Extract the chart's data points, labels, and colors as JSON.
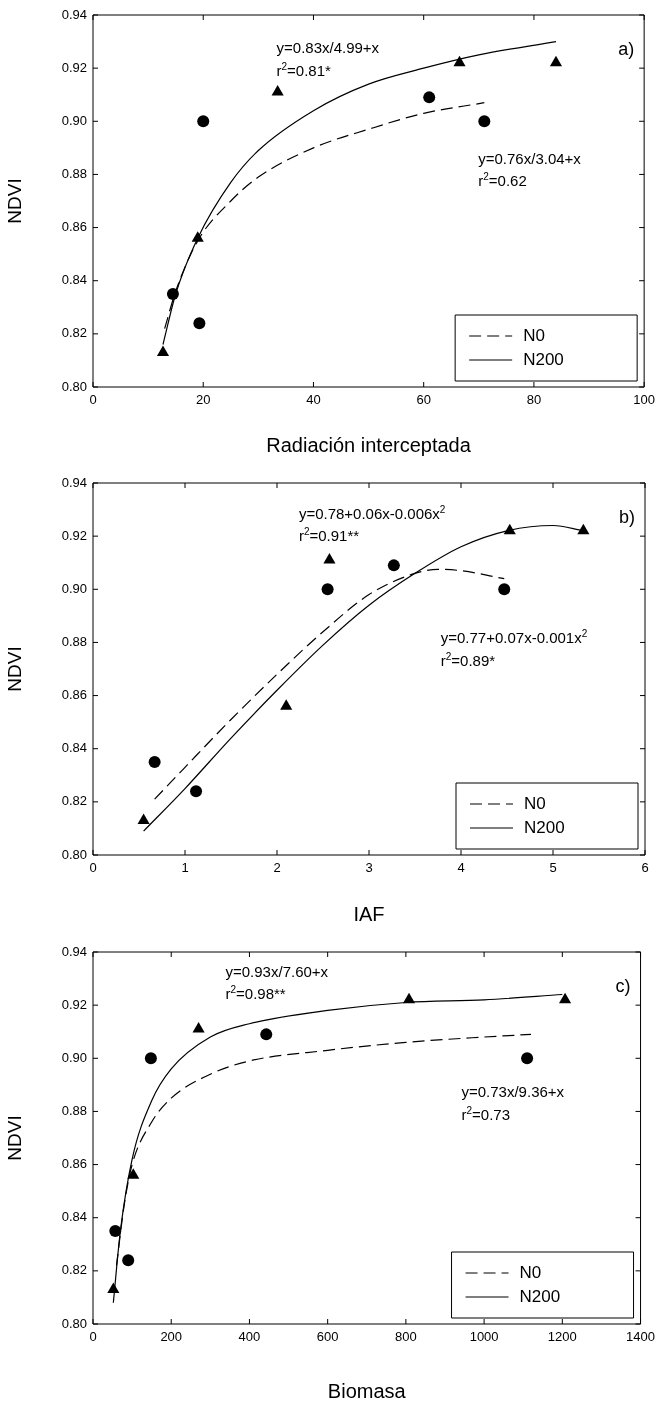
{
  "chart_data": [
    {
      "type": "scatter",
      "xlabel": "Radiación interceptada",
      "ylabel": "NDVI",
      "xlim": [
        0,
        100
      ],
      "xticks": [
        0,
        20,
        40,
        60,
        80,
        100
      ],
      "ylim": [
        0.8,
        0.94
      ],
      "yticks": [
        {
          "value": 0.8,
          "label": "0.80"
        },
        {
          "value": 0.82,
          "label": "0.82"
        },
        {
          "value": 0.84,
          "label": "0.84"
        },
        {
          "value": 0.86,
          "label": "0.86"
        },
        {
          "value": 0.88,
          "label": "0.88"
        },
        {
          "value": 0.9,
          "label": "0.90"
        },
        {
          "value": 0.92,
          "label": "0.92"
        },
        {
          "value": 0.94,
          "label": "0.94"
        }
      ],
      "grid": false,
      "legend": "bottom right",
      "series": [
        {
          "name": "N0",
          "type": "line",
          "color": "#000000",
          "line_style": "dashed",
          "marker": "none",
          "x": [
            13,
            15,
            19,
            25,
            30,
            40,
            50,
            60,
            71
          ],
          "values": [
            0.822,
            0.836,
            0.855,
            0.87,
            0.879,
            0.89,
            0.897,
            0.903,
            0.907
          ]
        },
        {
          "name": "N200",
          "type": "line",
          "color": "#000000",
          "line_style": "solid",
          "marker": "none",
          "x": [
            12.7,
            15,
            19,
            25,
            30,
            40,
            50,
            60,
            70,
            84
          ],
          "values": [
            0.816,
            0.835,
            0.856,
            0.877,
            0.889,
            0.904,
            0.914,
            0.92,
            0.925,
            0.93
          ]
        },
        {
          "type": "scatter",
          "color": "#000000",
          "marker": "circle",
          "x": [
            14.5,
            19.3,
            20,
            61,
            71
          ],
          "values": [
            0.835,
            0.824,
            0.9,
            0.909,
            0.9
          ]
        },
        {
          "type": "scatter",
          "color": "#000000",
          "marker": "triangle",
          "x": [
            12.7,
            19,
            33.5,
            66.5,
            84
          ],
          "values": [
            0.813,
            0.856,
            0.911,
            0.922,
            0.922
          ]
        }
      ],
      "annotations": [
        "a)",
        "y=0.83x/4.99+x",
        "r$^{2}$=0.81*",
        "y=0.76x/3.04+x",
        "r$^{2}$=0.62"
      ]
    },
    {
      "type": "scatter",
      "xlabel": "IAF",
      "ylabel": "NDVI",
      "xlim": [
        0,
        6
      ],
      "xticks": [
        0,
        1,
        2,
        3,
        4,
        5,
        6
      ],
      "ylim": [
        0.8,
        0.94
      ],
      "yticks": [
        {
          "value": 0.8,
          "label": "0.80"
        },
        {
          "value": 0.82,
          "label": "0.82"
        },
        {
          "value": 0.84,
          "label": "0.84"
        },
        {
          "value": 0.86,
          "label": "0.86"
        },
        {
          "value": 0.88,
          "label": "0.88"
        },
        {
          "value": 0.9,
          "label": "0.90"
        },
        {
          "value": 0.92,
          "label": "0.92"
        },
        {
          "value": 0.94,
          "label": "0.94"
        }
      ],
      "grid": false,
      "legend": "bottom right",
      "series": [
        {
          "name": "N0",
          "type": "line",
          "color": "#000000",
          "line_style": "dashed",
          "marker": "none",
          "x": [
            0.67,
            1,
            1.5,
            2,
            2.5,
            3,
            3.5,
            3.75,
            4,
            4.47
          ],
          "values": [
            0.821,
            0.833,
            0.851,
            0.868,
            0.884,
            0.898,
            0.906,
            0.9075,
            0.907,
            0.904
          ]
        },
        {
          "name": "N200",
          "type": "line",
          "color": "#000000",
          "line_style": "solid",
          "marker": "none",
          "x": [
            0.55,
            1,
            1.5,
            2,
            2.5,
            3,
            3.5,
            4,
            4.5,
            5,
            5.33
          ],
          "values": [
            0.809,
            0.825,
            0.844,
            0.862,
            0.879,
            0.894,
            0.906,
            0.916,
            0.922,
            0.924,
            0.922
          ]
        },
        {
          "type": "scatter",
          "color": "#000000",
          "marker": "circle",
          "x": [
            0.67,
            1.12,
            2.55,
            3.27,
            4.47
          ],
          "values": [
            0.835,
            0.824,
            0.9,
            0.909,
            0.9
          ]
        },
        {
          "type": "scatter",
          "color": "#000000",
          "marker": "triangle",
          "x": [
            0.55,
            2.1,
            2.57,
            4.53,
            5.33
          ],
          "values": [
            0.813,
            0.856,
            0.911,
            0.922,
            0.922
          ]
        }
      ],
      "annotations": [
        "b)",
        "y=0.78+0.06x-0.006x$^{2}$",
        "r$^{2}$=0.91**",
        "y=0.77+0.07x-0.001x$^{2}$",
        "r$^{2}$=0.89*"
      ]
    },
    {
      "type": "scatter",
      "xlabel": "Biomasa",
      "ylabel": "NDVI",
      "xlim": [
        0,
        1400
      ],
      "xticks": [
        0,
        200,
        400,
        600,
        800,
        1000,
        1200,
        1400
      ],
      "ylim": [
        0.8,
        0.94
      ],
      "yticks": [
        {
          "value": 0.8,
          "label": "0.80"
        },
        {
          "value": 0.82,
          "label": "0.82"
        },
        {
          "value": 0.84,
          "label": "0.84"
        },
        {
          "value": 0.86,
          "label": "0.86"
        },
        {
          "value": 0.88,
          "label": "0.88"
        },
        {
          "value": 0.9,
          "label": "0.90"
        },
        {
          "value": 0.92,
          "label": "0.92"
        },
        {
          "value": 0.94,
          "label": "0.94"
        }
      ],
      "grid": false,
      "legend": "bottom right",
      "series": [
        {
          "name": "N0",
          "type": "line",
          "color": "#000000",
          "line_style": "dashed",
          "marker": "none",
          "x": [
            60,
            80,
            100,
            150,
            200,
            300,
            400,
            600,
            800,
            1000,
            1120
          ],
          "values": [
            0.822,
            0.845,
            0.86,
            0.876,
            0.885,
            0.894,
            0.899,
            0.903,
            0.906,
            0.908,
            0.909
          ]
        },
        {
          "name": "N200",
          "type": "line",
          "color": "#000000",
          "line_style": "solid",
          "marker": "none",
          "x": [
            52,
            70,
            100,
            150,
            200,
            300,
            400,
            600,
            800,
            1000,
            1200
          ],
          "values": [
            0.808,
            0.835,
            0.862,
            0.884,
            0.896,
            0.908,
            0.913,
            0.918,
            0.921,
            0.922,
            0.924
          ]
        },
        {
          "type": "scatter",
          "color": "#000000",
          "marker": "circle",
          "x": [
            57,
            90,
            148,
            443,
            1110
          ],
          "values": [
            0.835,
            0.824,
            0.9,
            0.909,
            0.9
          ]
        },
        {
          "type": "scatter",
          "color": "#000000",
          "marker": "triangle",
          "x": [
            52,
            103,
            270,
            808,
            1207
          ],
          "values": [
            0.813,
            0.856,
            0.911,
            0.922,
            0.922
          ]
        }
      ],
      "annotations": [
        "c)",
        "y=0.93x/7.60+x",
        "r$^{2}$=0.98**",
        "y=0.73x/9.36+x",
        "r$^{2}$=0.73"
      ]
    }
  ]
}
